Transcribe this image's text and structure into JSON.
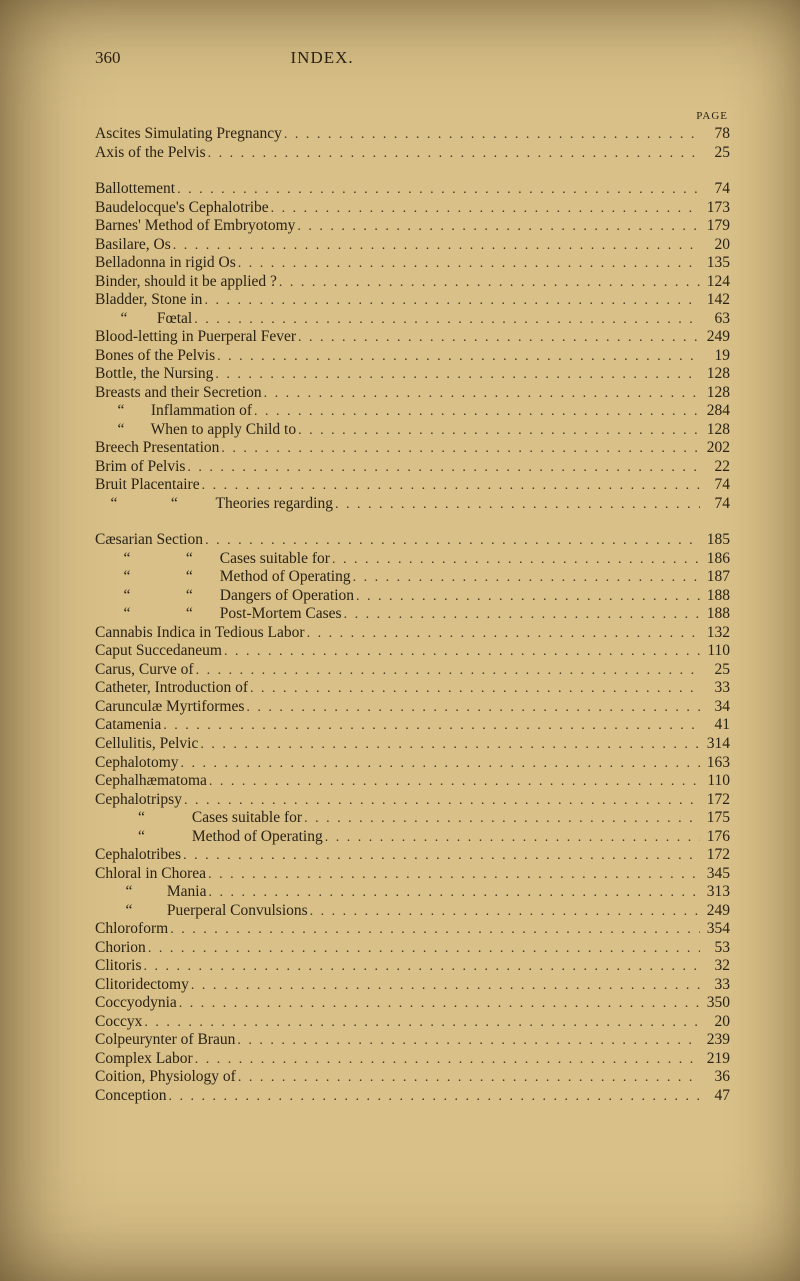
{
  "meta": {
    "page_number": "360",
    "running_head": "INDEX.",
    "page_column_label": "PAGE"
  },
  "typography": {
    "body_font_family": "Georgia, serif",
    "body_font_size_pt": 12,
    "header_font_size_pt": 13,
    "small_caps_font_size_pt": 9,
    "text_color": "#2a2214",
    "background_color": "#d8c088",
    "leader_color": "#3a3018",
    "line_height": 1.18
  },
  "blocks": [
    {
      "entries": [
        {
          "label": "Ascites Simulating Pregnancy",
          "page": "78",
          "indent": 0
        },
        {
          "label": "Axis of the Pelvis",
          "page": "25",
          "indent": 0
        }
      ]
    },
    {
      "entries": [
        {
          "label": "Ballottement",
          "page": "74",
          "indent": 0
        },
        {
          "label": "Baudelocque's Cephalotribe",
          "page": "173",
          "indent": 0
        },
        {
          "label": "Barnes' Method of Embryotomy",
          "page": "179",
          "indent": 0
        },
        {
          "label": "Basilare, Os",
          "page": "20",
          "indent": 0
        },
        {
          "label": "Belladonna in rigid Os",
          "page": "135",
          "indent": 0
        },
        {
          "label": "Binder, should it be applied ?",
          "page": "124",
          "indent": 0
        },
        {
          "label": "Bladder, Stone in",
          "page": "142",
          "indent": 0
        },
        {
          "ditto_of": "Bladder,",
          "label": "Fœtal",
          "page": "63",
          "indent": 0
        },
        {
          "label": "Blood-letting in Puerperal Fever",
          "page": "249",
          "indent": 0
        },
        {
          "label": "Bones of the Pelvis",
          "page": "19",
          "indent": 0
        },
        {
          "label": "Bottle, the Nursing",
          "page": "128",
          "indent": 0
        },
        {
          "label": "Breasts and their Secretion",
          "page": "128",
          "indent": 0
        },
        {
          "ditto_of": "Breasts",
          "label": "Inflammation of",
          "page": "284",
          "indent": 0
        },
        {
          "ditto_of": "Breasts",
          "label": "When to apply Child to",
          "page": "128",
          "indent": 0
        },
        {
          "label": "Breech Presentation",
          "page": "202",
          "indent": 0
        },
        {
          "label": "Brim of Pelvis",
          "page": "22",
          "indent": 0
        },
        {
          "label": "Bruit Placentaire",
          "page": "74",
          "indent": 0
        },
        {
          "ditto_of": "Bruit",
          "ditto2_of": "Placentaire",
          "label": "Theories regarding",
          "page": "74",
          "indent": 0
        }
      ]
    },
    {
      "entries": [
        {
          "label": "Cæsarian Section",
          "page": "185",
          "indent": 0
        },
        {
          "ditto_of": "Cæsarian",
          "ditto2_of": "Section",
          "label": "Cases suitable for",
          "page": "186",
          "indent": 0
        },
        {
          "ditto_of": "Cæsarian",
          "ditto2_of": "Section",
          "label": "Method of Operating",
          "page": "187",
          "indent": 0
        },
        {
          "ditto_of": "Cæsarian",
          "ditto2_of": "Section",
          "label": "Dangers of Operation",
          "page": "188",
          "indent": 0
        },
        {
          "ditto_of": "Cæsarian",
          "ditto2_of": "Section",
          "label": "Post-Mortem Cases",
          "page": "188",
          "indent": 0
        },
        {
          "label": "Cannabis Indica in Tedious Labor",
          "page": "132",
          "indent": 0
        },
        {
          "label": "Caput Succedaneum",
          "page": "110",
          "indent": 0
        },
        {
          "label": "Carus, Curve of",
          "page": "25",
          "indent": 0
        },
        {
          "label": "Catheter, Introduction of",
          "page": "33",
          "indent": 0
        },
        {
          "label": "Carunculæ Myrtiformes",
          "page": "34",
          "indent": 0
        },
        {
          "label": "Catamenia",
          "page": "41",
          "indent": 0
        },
        {
          "label": "Cellulitis, Pelvic",
          "page": "314",
          "indent": 0
        },
        {
          "label": "Cephalotomy",
          "page": "163",
          "indent": 0
        },
        {
          "label": "Cephalhæmatoma",
          "page": "110",
          "indent": 0
        },
        {
          "label": "Cephalotripsy",
          "page": "172",
          "indent": 0
        },
        {
          "ditto_of": "Cephalotripsy",
          "label": "Cases suitable for",
          "page": "175",
          "indent": 0
        },
        {
          "ditto_of": "Cephalotripsy",
          "label": "Method of Operating",
          "page": "176",
          "indent": 0
        },
        {
          "label": "Cephalotribes",
          "page": "172",
          "indent": 0
        },
        {
          "label": "Chloral in Chorea",
          "page": "345",
          "indent": 0
        },
        {
          "ditto_of": "Chloral in",
          "label": "Mania",
          "page": "313",
          "indent": 0
        },
        {
          "ditto_of": "Chloral in",
          "label": "Puerperal Convulsions",
          "page": "249",
          "indent": 0
        },
        {
          "label": "Chloroform",
          "page": "354",
          "indent": 0
        },
        {
          "label": "Chorion",
          "page": "53",
          "indent": 0
        },
        {
          "label": "Clitoris",
          "page": "32",
          "indent": 0
        },
        {
          "label": "Clitoridectomy",
          "page": "33",
          "indent": 0
        },
        {
          "label": "Coccyodynia",
          "page": "350",
          "indent": 0
        },
        {
          "label": "Coccyx",
          "page": "20",
          "indent": 0
        },
        {
          "label": "Colpeurynter of Braun",
          "page": "239",
          "indent": 0
        },
        {
          "label": "Complex Labor",
          "page": "219",
          "indent": 0
        },
        {
          "label": "Coition, Physiology of",
          "page": "36",
          "indent": 0
        },
        {
          "label": "Conception",
          "page": "47",
          "indent": 0
        }
      ]
    }
  ]
}
